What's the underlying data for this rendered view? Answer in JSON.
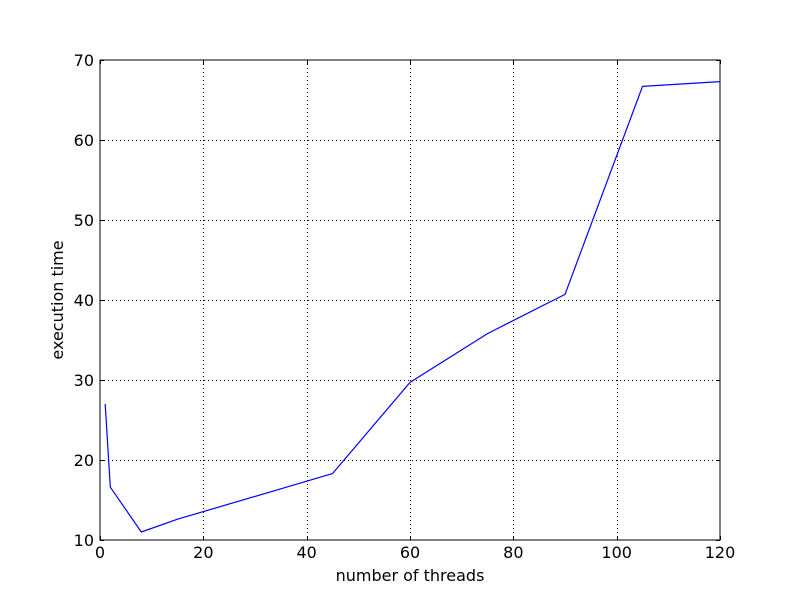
{
  "chart_data": {
    "type": "line",
    "title": "",
    "xlabel": "number of threads",
    "ylabel": "execution time",
    "xlim": [
      0,
      120
    ],
    "ylim": [
      10,
      70
    ],
    "xticks": [
      0,
      20,
      40,
      60,
      80,
      100,
      120
    ],
    "yticks": [
      10,
      20,
      30,
      40,
      50,
      60,
      70
    ],
    "grid": true,
    "grid_style": "dotted",
    "series": [
      {
        "color": "#0000ff",
        "x": [
          1,
          2,
          8,
          15,
          45,
          60,
          75,
          90,
          105,
          120
        ],
        "y": [
          27.0,
          16.6,
          11.0,
          12.6,
          18.3,
          29.7,
          35.8,
          40.7,
          66.7,
          67.3
        ]
      }
    ]
  }
}
